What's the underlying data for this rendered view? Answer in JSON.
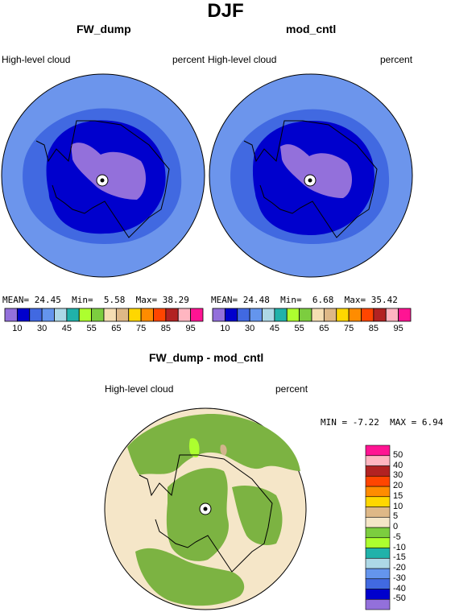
{
  "figure": {
    "title": "DJF"
  },
  "panels": [
    {
      "id": "fw",
      "title": "FW_dump",
      "left_label": "High-level cloud",
      "right_label": "percent",
      "stats": {
        "mean_label": "MEAN=",
        "mean": "24.45",
        "min_label": "Min=",
        "min": "5.58",
        "max_label": "Max=",
        "max": "38.29"
      }
    },
    {
      "id": "cntl",
      "title": "mod_cntl",
      "left_label": "High-level cloud",
      "right_label": "percent",
      "stats": {
        "mean_label": "MEAN=",
        "mean": "24.48",
        "min_label": "Min=",
        "min": "6.68",
        "max_label": "Max=",
        "max": "35.42"
      }
    }
  ],
  "diff_panel": {
    "title": "FW_dump - mod_cntl",
    "left_label": "High-level cloud",
    "right_label": "percent",
    "stats": {
      "min_label": "MIN =",
      "min": "-7.22",
      "max_label": "MAX =",
      "max": "6.94"
    }
  },
  "colorbar_top": {
    "colors": [
      "#9370DB",
      "#0000CD",
      "#4169E1",
      "#6495ED",
      "#ADD8E6",
      "#20B2AA",
      "#ADFF2F",
      "#7CCD3F",
      "#F5DEB3",
      "#DEB887",
      "#FFD700",
      "#FF8C00",
      "#FF4500",
      "#B22222",
      "#FFB6C1",
      "#FF1493"
    ],
    "labels": [
      "10",
      "30",
      "45",
      "55",
      "65",
      "75",
      "85",
      "95"
    ]
  },
  "colorbar_diff": {
    "colors": [
      "#9370DB",
      "#0000CD",
      "#4169E1",
      "#6495ED",
      "#ADD8E6",
      "#20B2AA",
      "#ADFF2F",
      "#7CCD3F",
      "#F5E6C8",
      "#DEB887",
      "#FFD700",
      "#FF8C00",
      "#FF4500",
      "#B22222",
      "#FFB6C1",
      "#FF1493"
    ],
    "labels": [
      "50",
      "40",
      "30",
      "20",
      "15",
      "10",
      "5",
      "0",
      "-5",
      "-10",
      "-15",
      "-20",
      "-30",
      "-40",
      "-50"
    ]
  },
  "map_colors": {
    "ocean_blue": "#6C95EC",
    "mid_blue": "#4169E1",
    "dark_blue": "#0000CD",
    "purple": "#9370DB",
    "light_green": "#ADFF2F",
    "green": "#7CB342",
    "tan": "#F5E6C8",
    "brown": "#D2B48C"
  }
}
